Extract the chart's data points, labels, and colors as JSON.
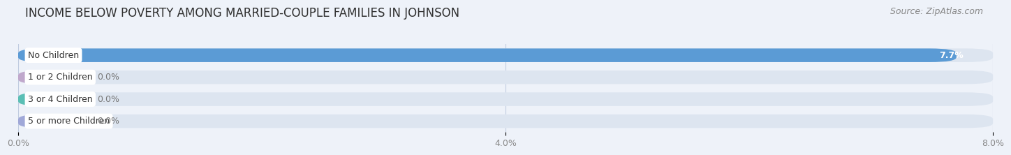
{
  "title": "INCOME BELOW POVERTY AMONG MARRIED-COUPLE FAMILIES IN JOHNSON",
  "source": "Source: ZipAtlas.com",
  "categories": [
    "No Children",
    "1 or 2 Children",
    "3 or 4 Children",
    "5 or more Children"
  ],
  "values": [
    7.7,
    0.0,
    0.0,
    0.0
  ],
  "bar_colors": [
    "#5b9bd5",
    "#c0a8cc",
    "#5bbfb5",
    "#a0a8d8"
  ],
  "background_color": "#eef2f9",
  "bar_background_color": "#dde5f0",
  "xlim": [
    0,
    8.0
  ],
  "xticks": [
    0.0,
    4.0,
    8.0
  ],
  "xtick_labels": [
    "0.0%",
    "4.0%",
    "8.0%"
  ],
  "value_label_inside_color": "#ffffff",
  "value_label_outside_color": "#777777",
  "bar_height": 0.62,
  "title_fontsize": 12,
  "source_fontsize": 9,
  "label_fontsize": 9,
  "tick_fontsize": 9,
  "value_fontsize": 9
}
